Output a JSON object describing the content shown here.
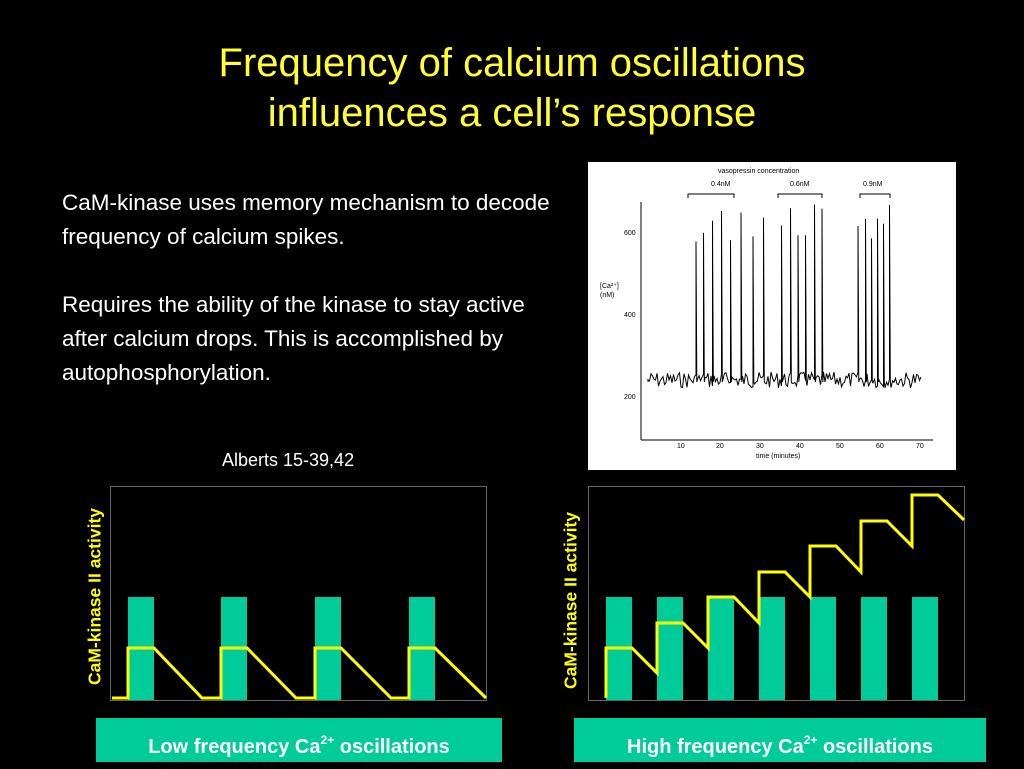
{
  "slide": {
    "title_line1": "Frequency of calcium oscillations",
    "title_line2": "influences a cell’s response",
    "paragraph1": "CaM-kinase uses memory mechanism to decode frequency of calcium spikes.",
    "paragraph2": "Requires the ability of the kinase to stay active after calcium drops. This is accomplished by autophosphorylation.",
    "citation": "Alberts 15-39,42"
  },
  "figure": {
    "header": "vasopressin concentration",
    "concentrations": [
      "0.4nM",
      "0.6nM",
      "0.9nM"
    ],
    "ylabel_line1": "[Ca²⁺]",
    "ylabel_line2": "(nM)",
    "y_ticks": [
      "600",
      "400",
      "200"
    ],
    "x_ticks": [
      "10",
      "20",
      "30",
      "40",
      "50",
      "60",
      "70"
    ],
    "xlabel": "time (minutes)"
  },
  "panels": {
    "yaxis_label": "CaM-kinase II activity",
    "left_caption_pre": "Low frequency Ca",
    "left_caption_sup": "2+",
    "left_caption_post": " oscillations",
    "right_caption_pre": "High frequency Ca",
    "right_caption_sup": "2+",
    "right_caption_post": " oscillations"
  },
  "colors": {
    "background": "#000000",
    "title": "#ffff33",
    "pulse": "#00cc99",
    "activity_line": "#ffff00",
    "caption_bg": "#00cc99"
  }
}
